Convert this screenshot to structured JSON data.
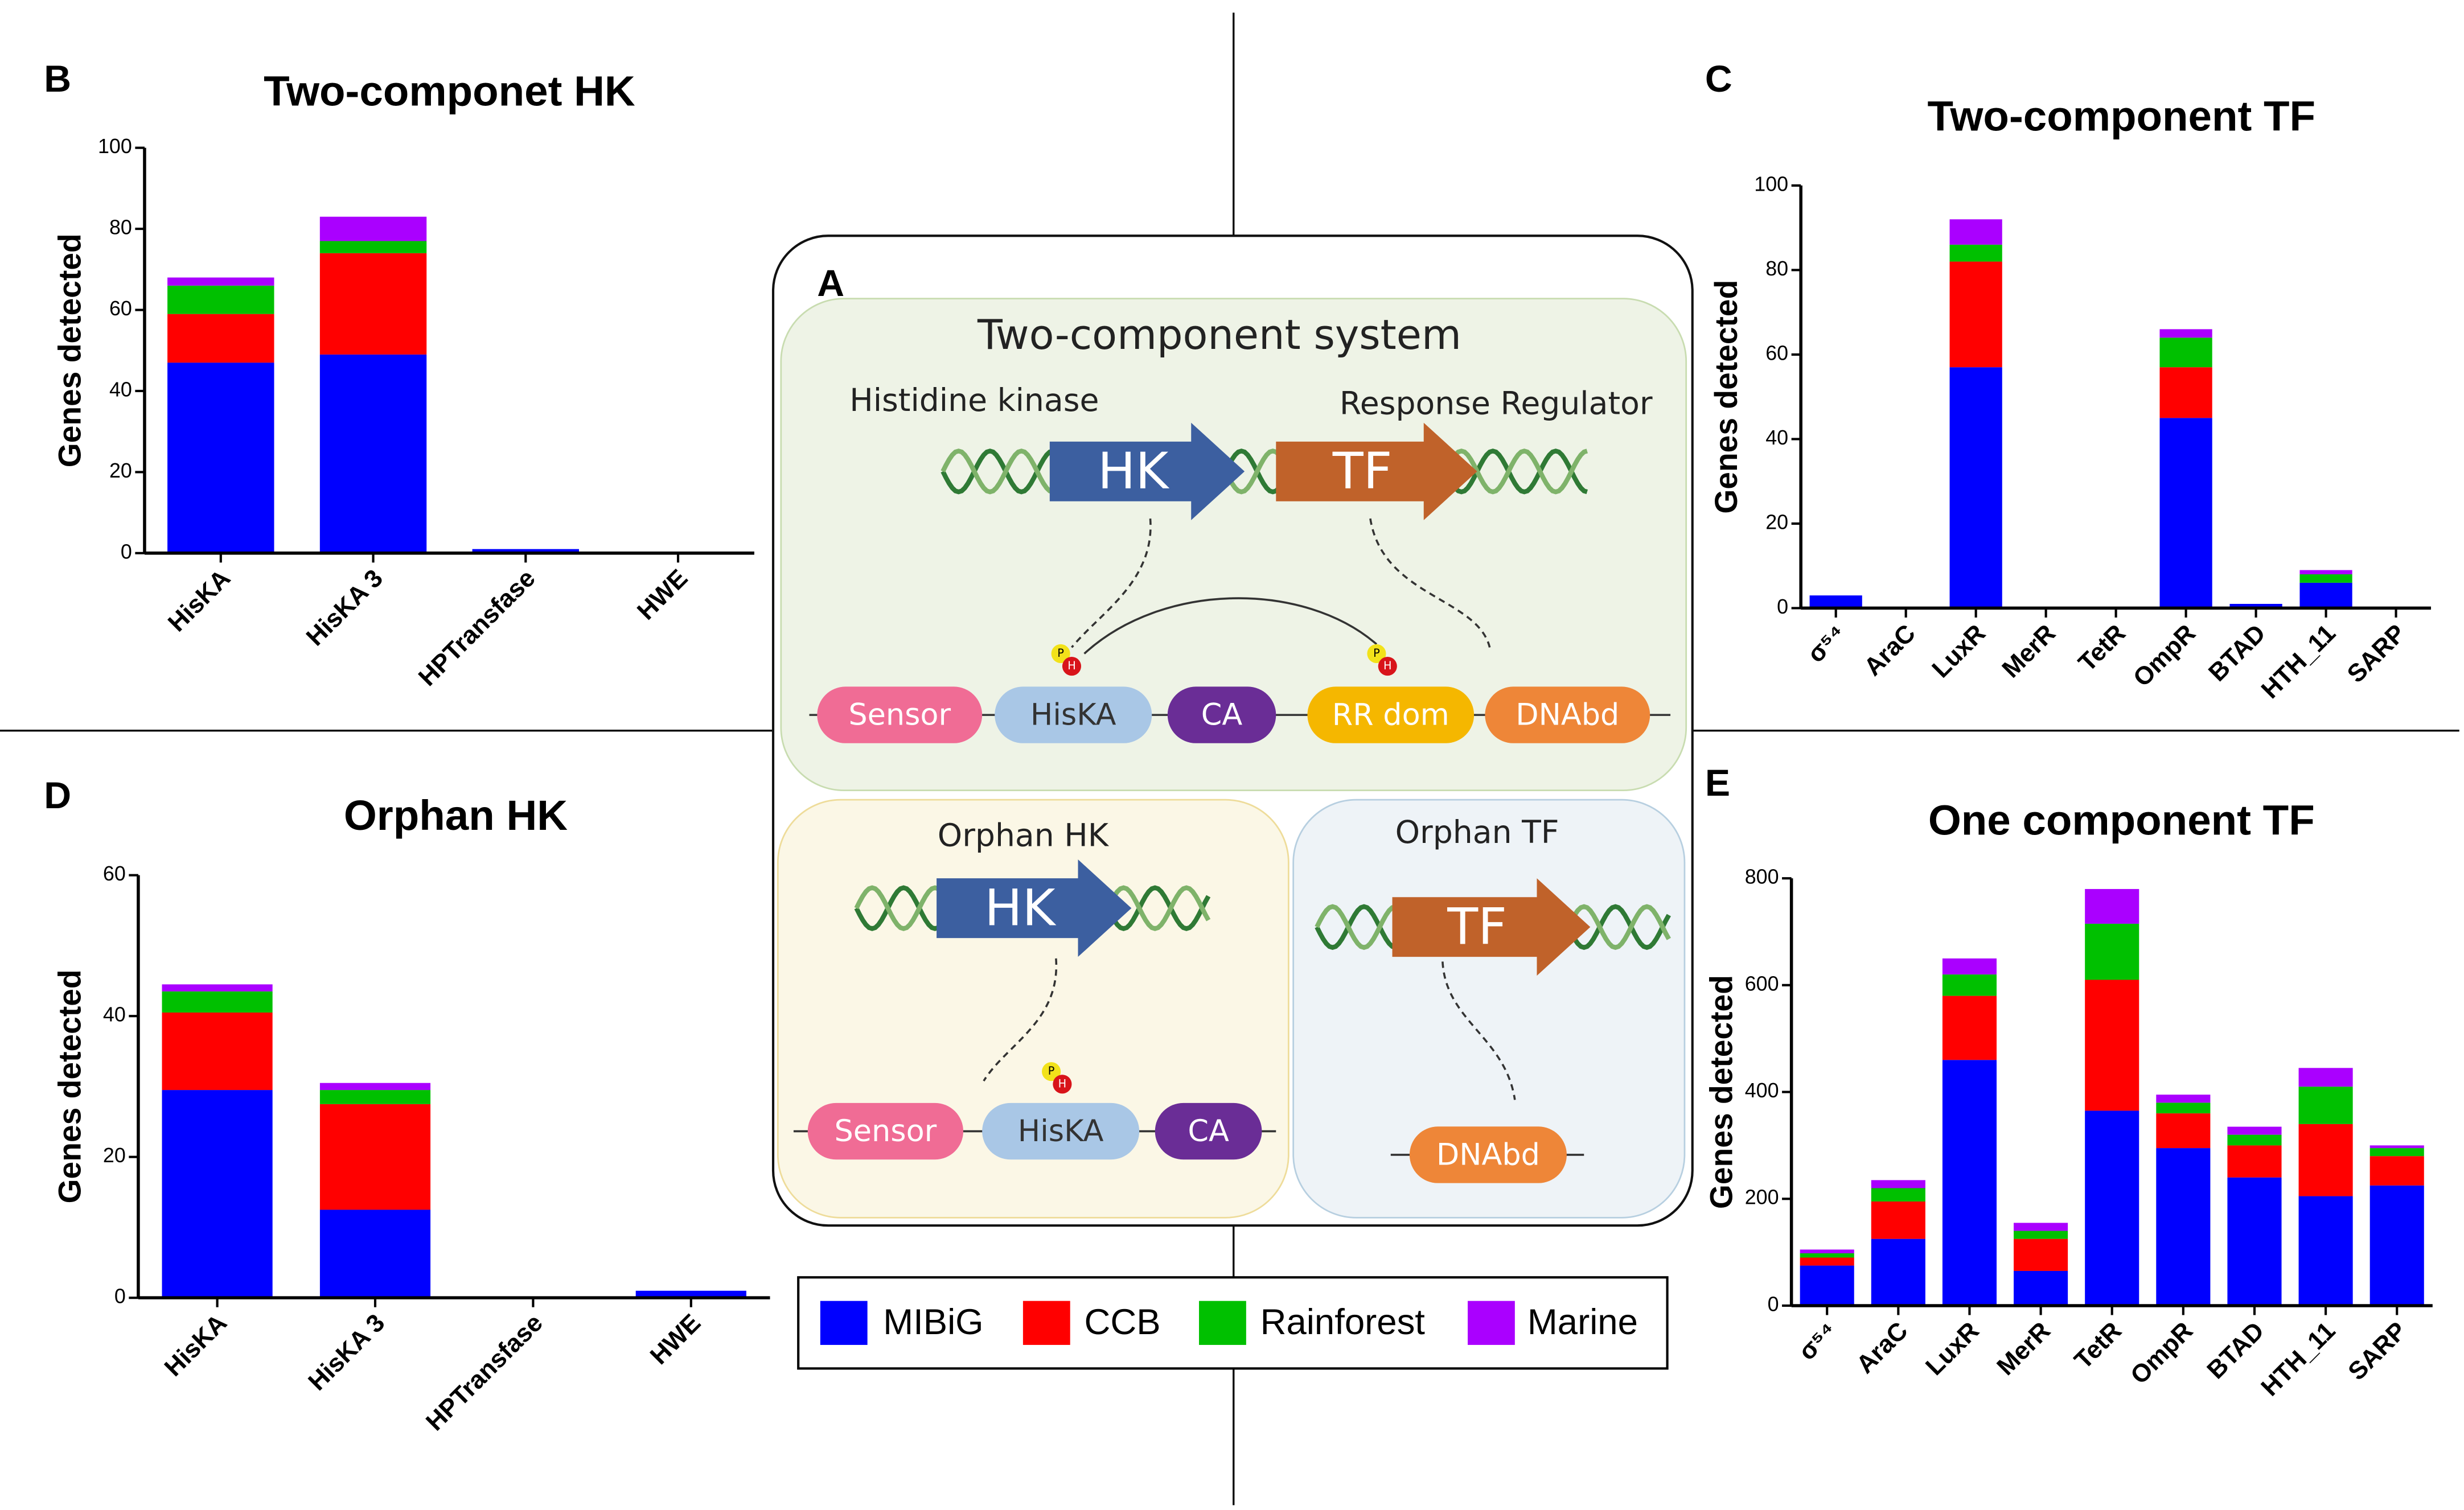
{
  "chart_data": [
    {
      "type": "bar",
      "panel": "B",
      "title": "Two-componet HK",
      "y_label": "Genes detected",
      "categories": [
        "HisKA",
        "HisKA 3",
        "HPTransfase",
        "HWE"
      ],
      "series": [
        {
          "name": "MIBiG",
          "color": "#0000ff",
          "values": [
            47,
            49,
            1,
            0
          ]
        },
        {
          "name": "CCB",
          "color": "#ff0000",
          "values": [
            12,
            25,
            0,
            0
          ]
        },
        {
          "name": "Rainforest",
          "color": "#00c000",
          "values": [
            7,
            3,
            0,
            0
          ]
        },
        {
          "name": "Marine",
          "color": "#aa00ff",
          "values": [
            2,
            6,
            0,
            0
          ]
        }
      ],
      "ylim": [
        0,
        100
      ],
      "yticks": [
        0,
        20,
        40,
        60,
        80,
        100
      ],
      "stacked": true
    },
    {
      "type": "bar",
      "panel": "C",
      "title": "Two-component TF",
      "y_label": "Genes detected",
      "categories": [
        "σ⁵⁴",
        "AraC",
        "LuxR",
        "MerR",
        "TetR",
        "OmpR",
        "BTAD",
        "HTH_11",
        "SARP"
      ],
      "series": [
        {
          "color": "#0000ff",
          "values": [
            3,
            0,
            57,
            0,
            0,
            45,
            1,
            6,
            0
          ]
        },
        {
          "color": "#ff0000",
          "values": [
            0,
            0,
            25,
            0,
            0,
            12,
            0,
            0,
            0
          ]
        },
        {
          "color": "#00c000",
          "values": [
            0,
            0,
            4,
            0,
            0,
            7,
            0,
            2,
            0
          ]
        },
        {
          "color": "#aa00ff",
          "values": [
            0,
            0,
            6,
            0,
            0,
            2,
            0,
            1,
            0
          ]
        }
      ],
      "ylim": [
        0,
        100
      ],
      "yticks": [
        0,
        20,
        40,
        60,
        80,
        100
      ],
      "stacked": true
    },
    {
      "type": "bar",
      "panel": "D",
      "title": "Orphan HK",
      "y_label": "Genes detected",
      "categories": [
        "HisKA",
        "HisKA 3",
        "HPTransfase",
        "HWE"
      ],
      "series": [
        {
          "color": "#0000ff",
          "values": [
            29.5,
            12.5,
            0,
            1
          ]
        },
        {
          "color": "#ff0000",
          "values": [
            11,
            15,
            0,
            0
          ]
        },
        {
          "color": "#00c000",
          "values": [
            3,
            2,
            0,
            0
          ]
        },
        {
          "color": "#aa00ff",
          "values": [
            1,
            1,
            0,
            0
          ]
        }
      ],
      "ylim": [
        0,
        60
      ],
      "yticks": [
        0,
        20,
        40,
        60
      ],
      "stacked": true
    },
    {
      "type": "bar",
      "panel": "E",
      "title": "One component TF",
      "y_label": "Genes detected",
      "categories": [
        "σ⁵⁴",
        "AraC",
        "LuxR",
        "MerR",
        "TetR",
        "OmpR",
        "BTAD",
        "HTH_11",
        "SARP"
      ],
      "series": [
        {
          "color": "#0000ff",
          "values": [
            75,
            125,
            460,
            65,
            365,
            295,
            240,
            205,
            225
          ]
        },
        {
          "color": "#ff0000",
          "values": [
            15,
            70,
            120,
            60,
            245,
            65,
            60,
            135,
            55
          ]
        },
        {
          "color": "#00c000",
          "values": [
            8,
            25,
            40,
            15,
            105,
            20,
            20,
            70,
            15
          ]
        },
        {
          "color": "#aa00ff",
          "values": [
            7,
            15,
            30,
            15,
            65,
            15,
            15,
            35,
            5
          ]
        }
      ],
      "ylim": [
        0,
        800
      ],
      "yticks": [
        0,
        200,
        400,
        600,
        800
      ],
      "stacked": true
    }
  ],
  "diagram": {
    "panel": "A",
    "title": "Two-component system",
    "left_label": "Histidine kinase",
    "right_label": "Response Regulator",
    "hk": "HK",
    "tf": "TF",
    "domains": [
      "Sensor",
      "HisKA",
      "CA",
      "RR dom",
      "DNAbd"
    ],
    "phospho": [
      "P",
      "H"
    ],
    "orphan_hk": {
      "title": "Orphan HK",
      "domains": [
        "Sensor",
        "HisKA",
        "CA"
      ]
    },
    "orphan_tf": {
      "title": "Orphan TF",
      "domain": "DNAbd"
    }
  }
}
